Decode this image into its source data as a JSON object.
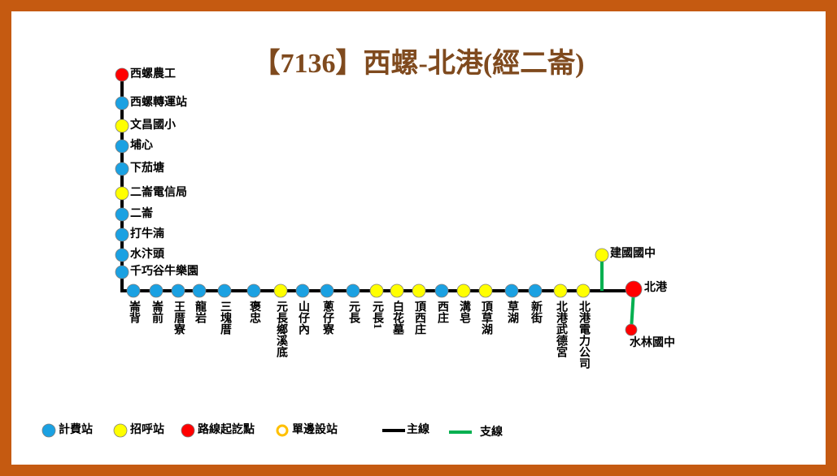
{
  "title": "【7136】西螺-北港(經二崙)",
  "vertical_stops": [
    {
      "label": "西螺農工",
      "color": "#ff0000"
    },
    {
      "label": "西螺轉運站",
      "color": "#1ba1e2"
    },
    {
      "label": "文昌國小",
      "color": "#ffff00"
    },
    {
      "label": "埔心",
      "color": "#1ba1e2"
    },
    {
      "label": "下茄塘",
      "color": "#1ba1e2"
    },
    {
      "label": "二崙電信局",
      "color": "#ffff00"
    },
    {
      "label": "二崙",
      "color": "#1ba1e2"
    },
    {
      "label": "打牛湳",
      "color": "#1ba1e2"
    },
    {
      "label": "水汴頭",
      "color": "#1ba1e2"
    },
    {
      "label": "千巧谷牛樂園",
      "color": "#1ba1e2"
    }
  ],
  "horizontal_stops": [
    {
      "label": "崙背",
      "color": "#1ba1e2"
    },
    {
      "label": "崙前",
      "color": "#1ba1e2"
    },
    {
      "label": "王厝寮",
      "color": "#1ba1e2"
    },
    {
      "label": "龍岩",
      "color": "#1ba1e2"
    },
    {
      "label": "三塊厝",
      "color": "#1ba1e2"
    },
    {
      "label": "褒忠",
      "color": "#1ba1e2"
    },
    {
      "label": "元長鄉溪底",
      "color": "#ffff00"
    },
    {
      "label": "山仔內",
      "color": "#1ba1e2"
    },
    {
      "label": "蔥仔寮",
      "color": "#1ba1e2"
    },
    {
      "label": "元長",
      "color": "#1ba1e2"
    },
    {
      "label": "元長1",
      "color": "#ffff00"
    },
    {
      "label": "白花墓",
      "color": "#ffff00"
    },
    {
      "label": "頂西庄",
      "color": "#ffff00"
    },
    {
      "label": "西庄",
      "color": "#1ba1e2"
    },
    {
      "label": "溝皂",
      "color": "#ffff00"
    },
    {
      "label": "頂草湖",
      "color": "#ffff00"
    },
    {
      "label": "草湖",
      "color": "#1ba1e2"
    },
    {
      "label": "新街",
      "color": "#1ba1e2"
    },
    {
      "label": "北港武德宮",
      "color": "#ffff00"
    },
    {
      "label": "北港電力公司",
      "color": "#ffff00"
    }
  ],
  "terminal": {
    "label": "北港",
    "color": "#ff0000"
  },
  "branch_stops": [
    {
      "label": "建國國中",
      "color": "#ffff00"
    },
    {
      "label": "水林國中",
      "color": "#ff0000"
    }
  ],
  "legend": [
    {
      "label": "計費站",
      "color": "#1ba1e2"
    },
    {
      "label": "招呼站",
      "color": "#ffff00"
    },
    {
      "label": "路線起訖點",
      "color": "#ff0000"
    },
    {
      "label": "單邊設站",
      "color": "#ffc000"
    },
    {
      "label": "主線",
      "color": "#000000"
    },
    {
      "label": "支線",
      "color": "#00b050"
    }
  ]
}
